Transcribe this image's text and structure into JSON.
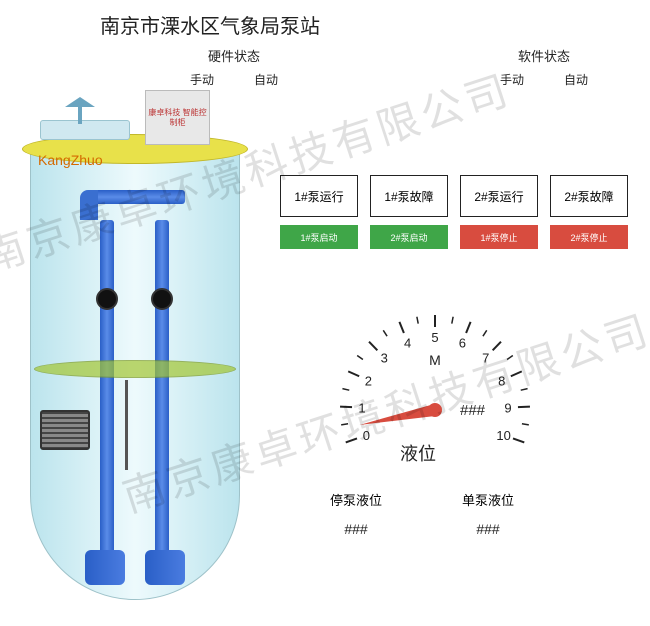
{
  "title": "南京市溧水区气象局泵站",
  "hardware_status": {
    "label": "硬件状态",
    "opt_manual": "手动",
    "opt_auto": "自动"
  },
  "software_status": {
    "label": "软件状态",
    "opt_manual": "手动",
    "opt_auto": "自动"
  },
  "tank": {
    "brand": "KangZhuo",
    "control_box": "康卓科技\n智能控制柜"
  },
  "indicators": [
    {
      "label": "1#泵运行"
    },
    {
      "label": "1#泵故障"
    },
    {
      "label": "2#泵运行"
    },
    {
      "label": "2#泵故障"
    }
  ],
  "buttons": [
    {
      "label": "1#泵启动",
      "color": "#3fa648"
    },
    {
      "label": "2#泵启动",
      "color": "#3fa648"
    },
    {
      "label": "1#泵停止",
      "color": "#d84c3f"
    },
    {
      "label": "2#泵停止",
      "color": "#d84c3f"
    }
  ],
  "gauge": {
    "min": 0,
    "max": 10,
    "ticks": [
      0,
      1,
      2,
      3,
      4,
      5,
      6,
      7,
      8,
      9,
      10
    ],
    "unit": "M",
    "value_text": "###",
    "needle_value": 0.4,
    "needle_color": "#d84c3f",
    "tick_color": "#222",
    "label": "液位"
  },
  "readouts": {
    "stop": {
      "label": "停泵液位",
      "value": "###"
    },
    "single": {
      "label": "单泵液位",
      "value": "###"
    }
  },
  "watermark": "南京康卓环境科技有限公司"
}
